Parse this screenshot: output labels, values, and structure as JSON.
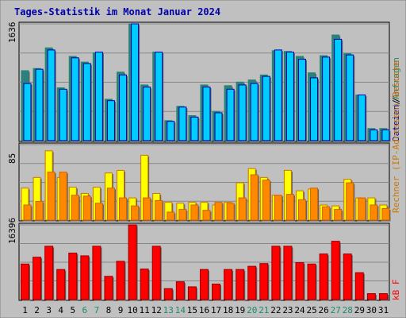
{
  "chart_data": {
    "type": "bar",
    "title": "Tages-Statistik im Monat Januar 2024",
    "categories": [
      "1",
      "2",
      "3",
      "4",
      "5",
      "6",
      "7",
      "8",
      "9",
      "10",
      "11",
      "12",
      "13",
      "14",
      "15",
      "16",
      "17",
      "18",
      "19",
      "20",
      "21",
      "22",
      "23",
      "24",
      "25",
      "26",
      "27",
      "28",
      "29",
      "30",
      "31"
    ],
    "weekend_days": [
      "6",
      "7",
      "13",
      "14",
      "20",
      "21",
      "27",
      "28"
    ],
    "panels": [
      {
        "id": "top",
        "ymax_label": "1636",
        "ymax": 1636,
        "series": [
          {
            "name": "Anfragen",
            "color": "#1e8a6e",
            "fill": "#2f7f80",
            "values": [
              980,
              1010,
              1300,
              740,
              1180,
              1100,
              1230,
              580,
              960,
              1636,
              780,
              1240,
              280,
              480,
              350,
              780,
              410,
              770,
              820,
              850,
              920,
              1260,
              1250,
              1180,
              950,
              1190,
              1480,
              1220,
              640,
              170,
              170
            ]
          },
          {
            "name": "Dateien",
            "color": "#0000aa",
            "fill": "#00ccff",
            "values": [
              800,
              1000,
              1270,
              720,
              1160,
              1080,
              1240,
              560,
              920,
              1636,
              750,
              1240,
              270,
              470,
              330,
              750,
              390,
              720,
              780,
              800,
              900,
              1270,
              1240,
              1140,
              880,
              1170,
              1420,
              1200,
              640,
              150,
              150
            ]
          }
        ]
      },
      {
        "id": "middle",
        "ymax_label": "85",
        "ymax": 85,
        "series": [
          {
            "name": "Rechner (IP-Adressen)",
            "color": "#cc7700",
            "fill": "#ffff00",
            "values": [
              36,
              48,
              78,
              48,
              37,
              30,
              37,
              53,
              56,
              25,
              73,
              30,
              20,
              19,
              20,
              20,
              17,
              20,
              42,
              58,
              48,
              28,
              56,
              33,
              35,
              17,
              16,
              46,
              25,
              25,
              17
            ]
          },
          {
            "name": "Besuche",
            "color": "#cc6600",
            "fill": "#ff8800",
            "values": [
              17,
              21,
              54,
              54,
              28,
              27,
              19,
              36,
              25,
              16,
              25,
              22,
              9,
              12,
              17,
              11,
              20,
              19,
              25,
              51,
              45,
              28,
              29,
              23,
              36,
              15,
              12,
              42,
              25,
              17,
              13
            ]
          }
        ]
      },
      {
        "id": "bottom",
        "ymax_label": "16396",
        "ymax": 16396,
        "series": [
          {
            "name": "kB F",
            "color": "#990000",
            "fill": "#ff0000",
            "values": [
              7800,
              9300,
              11700,
              6600,
              10200,
              9600,
              11700,
              5100,
              8400,
              16396,
              6700,
              11700,
              2400,
              3900,
              2800,
              6600,
              3400,
              6600,
              6600,
              7300,
              7900,
              11700,
              11700,
              8100,
              7800,
              10000,
              12800,
              10000,
              5900,
              1300,
              1300
            ]
          }
        ]
      }
    ],
    "right_labels": {
      "anfragen": "Anfragen",
      "slash": "/",
      "dateien": "Dateien",
      "rechner": "Rechner (IP-Adressen)",
      "besuche": "Besuche",
      "kbf": "kB F"
    }
  },
  "colors": {
    "background": "#c0c0c0",
    "panel": "#c0c0c0",
    "grid": "#888888",
    "title": "#0000aa",
    "axis_text": "#000000",
    "weekend_text": "#1e8a6e"
  }
}
